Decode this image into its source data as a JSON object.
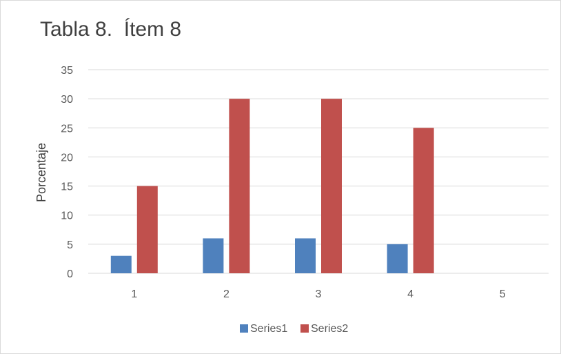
{
  "chart_data": {
    "type": "bar",
    "title": "Tabla 8.  Ítem 8",
    "xlabel": "",
    "ylabel": "Porcentaje",
    "categories": [
      "1",
      "2",
      "3",
      "4",
      "5"
    ],
    "series": [
      {
        "name": "Series1",
        "color": "#4f81bd",
        "values": [
          3,
          6,
          6,
          5,
          null
        ]
      },
      {
        "name": "Series2",
        "color": "#c0504d",
        "values": [
          15,
          30,
          30,
          25,
          null
        ]
      }
    ],
    "ylim": [
      0,
      35
    ],
    "yticks": [
      0,
      5,
      10,
      15,
      20,
      25,
      30,
      35
    ],
    "grid": true,
    "legend": "bottom"
  }
}
